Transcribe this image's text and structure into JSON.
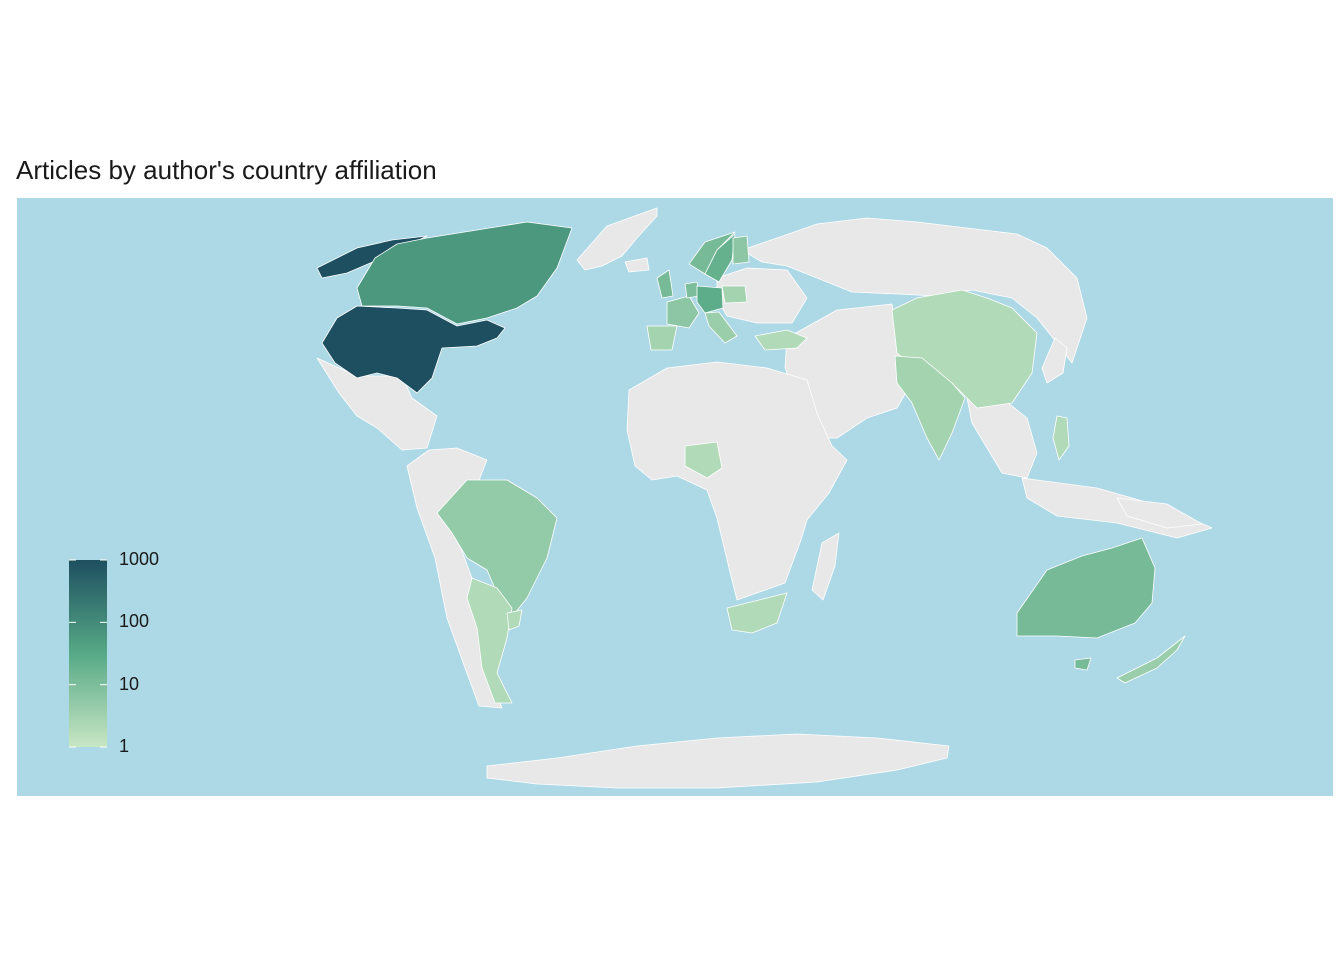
{
  "title": "Articles by author's country affiliation",
  "colors": {
    "ocean": "#add8e6",
    "no_data": "#e8e8e8",
    "border": "#ffffff",
    "scale_low": "#c8e6c4",
    "scale_mid": "#56a986",
    "scale_high": "#1e4f60"
  },
  "legend": {
    "scale": "log10",
    "breaks": [
      "1",
      "10",
      "100",
      "1000"
    ]
  },
  "countries": [
    {
      "name": "United States",
      "value": 1000
    },
    {
      "name": "Alaska",
      "value": 1000
    },
    {
      "name": "Canada",
      "value": 60
    },
    {
      "name": "Greenland",
      "value": null
    },
    {
      "name": "Brazil",
      "value": 5
    },
    {
      "name": "Argentina",
      "value": 2
    },
    {
      "name": "Uruguay",
      "value": 2
    },
    {
      "name": "Australia",
      "value": 12
    },
    {
      "name": "New Zealand",
      "value": 4
    },
    {
      "name": "China",
      "value": 2
    },
    {
      "name": "India",
      "value": 3
    },
    {
      "name": "Nigeria",
      "value": 2
    },
    {
      "name": "South Africa",
      "value": 2
    },
    {
      "name": "Turkey",
      "value": 2
    },
    {
      "name": "United Kingdom",
      "value": 12
    },
    {
      "name": "France",
      "value": 6
    },
    {
      "name": "Germany",
      "value": 25
    },
    {
      "name": "Sweden",
      "value": 20
    },
    {
      "name": "Norway",
      "value": 12
    },
    {
      "name": "Finland",
      "value": 6
    },
    {
      "name": "Poland",
      "value": 3
    },
    {
      "name": "Italy",
      "value": 4
    },
    {
      "name": "Spain",
      "value": 3
    },
    {
      "name": "Netherlands",
      "value": 10
    },
    {
      "name": "Philippines",
      "value": 2
    },
    {
      "name": "Russia",
      "value": null
    },
    {
      "name": "Africa",
      "value": null
    },
    {
      "name": "Middle East",
      "value": null
    },
    {
      "name": "Southeast Asia",
      "value": null
    },
    {
      "name": "Antarctica",
      "value": null
    }
  ]
}
